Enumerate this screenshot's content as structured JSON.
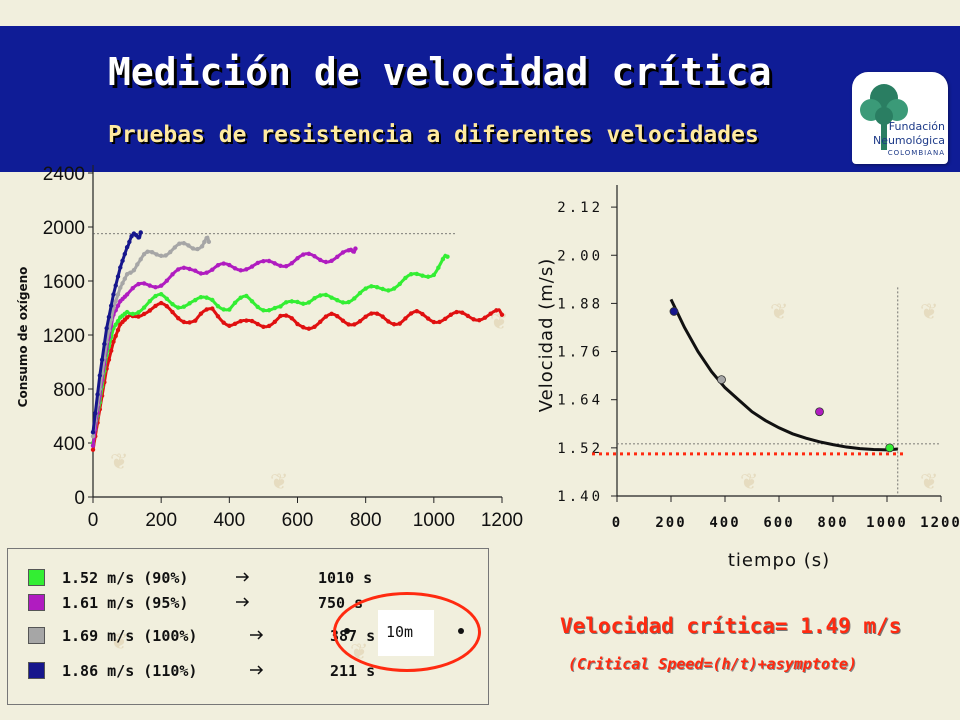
{
  "slide": {
    "title": "Medición de velocidad crítica",
    "subtitle": "Pruebas de resistencia a diferentes velocidades",
    "logo": {
      "line1": "Fundación",
      "line2": "Neumológica",
      "line3": "COLOMBIANA",
      "icon": "tree-icon"
    },
    "colors": {
      "header": "#0f1c96",
      "background": "#f1efdd",
      "accent": "#ff2a10"
    }
  },
  "legend": {
    "items": [
      {
        "label": "1.52 m/s (90%)",
        "time": "1010 s",
        "color": "#33ee33"
      },
      {
        "label": "1.61 m/s (95%)",
        "time": "750 s",
        "color": "#b01cc0"
      },
      {
        "label": "1.69 m/s (100%)",
        "time": "387 s",
        "color": "#a6a6a6"
      },
      {
        "label": "1.86 m/s (110%)",
        "time": "211 s",
        "color": "#16168c"
      }
    ],
    "callout": "10m"
  },
  "results": {
    "critical_speed": "Velocidad crítica= 1.49 m/s",
    "formula": "(Critical Speed=(h/t)+asymptote)"
  },
  "chart_data": [
    {
      "type": "line",
      "title": "",
      "xlabel": "",
      "ylabel": "Consumo de oxígeno",
      "xlim": [
        0,
        1200
      ],
      "ylim": [
        0,
        2400
      ],
      "xticks": [
        "0",
        "200",
        "400",
        "600",
        "800",
        "1000",
        "1200"
      ],
      "yticks": [
        "0",
        "400",
        "800",
        "1200",
        "1600",
        "2000",
        "2400"
      ],
      "reference_line_y": 1950,
      "series": [
        {
          "name": "1.52 m/s (90%)",
          "color": "#33ee33",
          "x": [
            0,
            20,
            40,
            60,
            80,
            100,
            150,
            200,
            250,
            300,
            350,
            400,
            450,
            500,
            550,
            600,
            650,
            700,
            750,
            800,
            850,
            900,
            950,
            1000,
            1040
          ],
          "y": [
            400,
            700,
            1050,
            1250,
            1330,
            1370,
            1420,
            1470,
            1440,
            1430,
            1470,
            1400,
            1460,
            1420,
            1380,
            1460,
            1480,
            1450,
            1480,
            1510,
            1560,
            1580,
            1630,
            1680,
            1780
          ]
        },
        {
          "name": "1.61 m/s (95%)",
          "color": "#b01cc0",
          "x": [
            0,
            20,
            40,
            60,
            80,
            100,
            150,
            200,
            250,
            300,
            350,
            400,
            450,
            500,
            550,
            600,
            650,
            700,
            750,
            770
          ],
          "y": [
            380,
            750,
            1100,
            1350,
            1450,
            1500,
            1560,
            1600,
            1650,
            1700,
            1680,
            1700,
            1720,
            1710,
            1740,
            1760,
            1770,
            1780,
            1790,
            1840
          ]
        },
        {
          "name": "1.69 m/s (100%)",
          "color": "#a6a6a6",
          "x": [
            0,
            20,
            40,
            60,
            80,
            100,
            130,
            160,
            200,
            240,
            280,
            320,
            340
          ],
          "y": [
            450,
            800,
            1150,
            1400,
            1550,
            1650,
            1750,
            1780,
            1820,
            1830,
            1860,
            1880,
            1890
          ]
        },
        {
          "name": "1.86 m/s (110%)",
          "color": "#16168c",
          "x": [
            0,
            20,
            40,
            60,
            80,
            100,
            120,
            140
          ],
          "y": [
            480,
            900,
            1250,
            1500,
            1700,
            1850,
            1920,
            1960
          ]
        },
        {
          "name": "",
          "color": "#e01010",
          "x": [
            0,
            20,
            40,
            60,
            80,
            100,
            150,
            200,
            250,
            300,
            350,
            400,
            450,
            500,
            550,
            600,
            650,
            700,
            750,
            800,
            850,
            900,
            950,
            1000,
            1050,
            1100,
            1150,
            1200
          ],
          "y": [
            350,
            650,
            950,
            1150,
            1280,
            1330,
            1390,
            1400,
            1350,
            1300,
            1380,
            1300,
            1270,
            1290,
            1330,
            1270,
            1290,
            1320,
            1310,
            1320,
            1330,
            1310,
            1340,
            1330,
            1330,
            1340,
            1350,
            1350
          ]
        }
      ]
    },
    {
      "type": "scatter",
      "title": "",
      "xlabel": "tiempo (s)",
      "ylabel": "Velocidad (m/s)",
      "xlim": [
        0,
        1200
      ],
      "ylim": [
        1.4,
        2.2
      ],
      "xticks": [
        "0",
        "200",
        "400",
        "600",
        "800",
        "1000",
        "1200"
      ],
      "yticks": [
        "1.40",
        "1.52",
        "1.64",
        "1.76",
        "1.88",
        "2.00",
        "2.12"
      ],
      "points": [
        {
          "x": 211,
          "y": 1.86,
          "color": "#16168c"
        },
        {
          "x": 387,
          "y": 1.69,
          "color": "#a6a6a6"
        },
        {
          "x": 750,
          "y": 1.61,
          "color": "#b01cc0"
        },
        {
          "x": 1010,
          "y": 1.52,
          "color": "#33ee33"
        }
      ],
      "fit_curve": {
        "x": [
          200,
          250,
          300,
          350,
          400,
          450,
          500,
          550,
          600,
          650,
          700,
          750,
          800,
          850,
          900,
          950,
          1000,
          1040
        ],
        "y": [
          1.89,
          1.82,
          1.76,
          1.71,
          1.67,
          1.64,
          1.61,
          1.588,
          1.57,
          1.555,
          1.544,
          1.535,
          1.528,
          1.522,
          1.518,
          1.516,
          1.515,
          1.517
        ]
      },
      "asymptote_y": 1.52,
      "asymptote_style": "red dotted"
    }
  ]
}
